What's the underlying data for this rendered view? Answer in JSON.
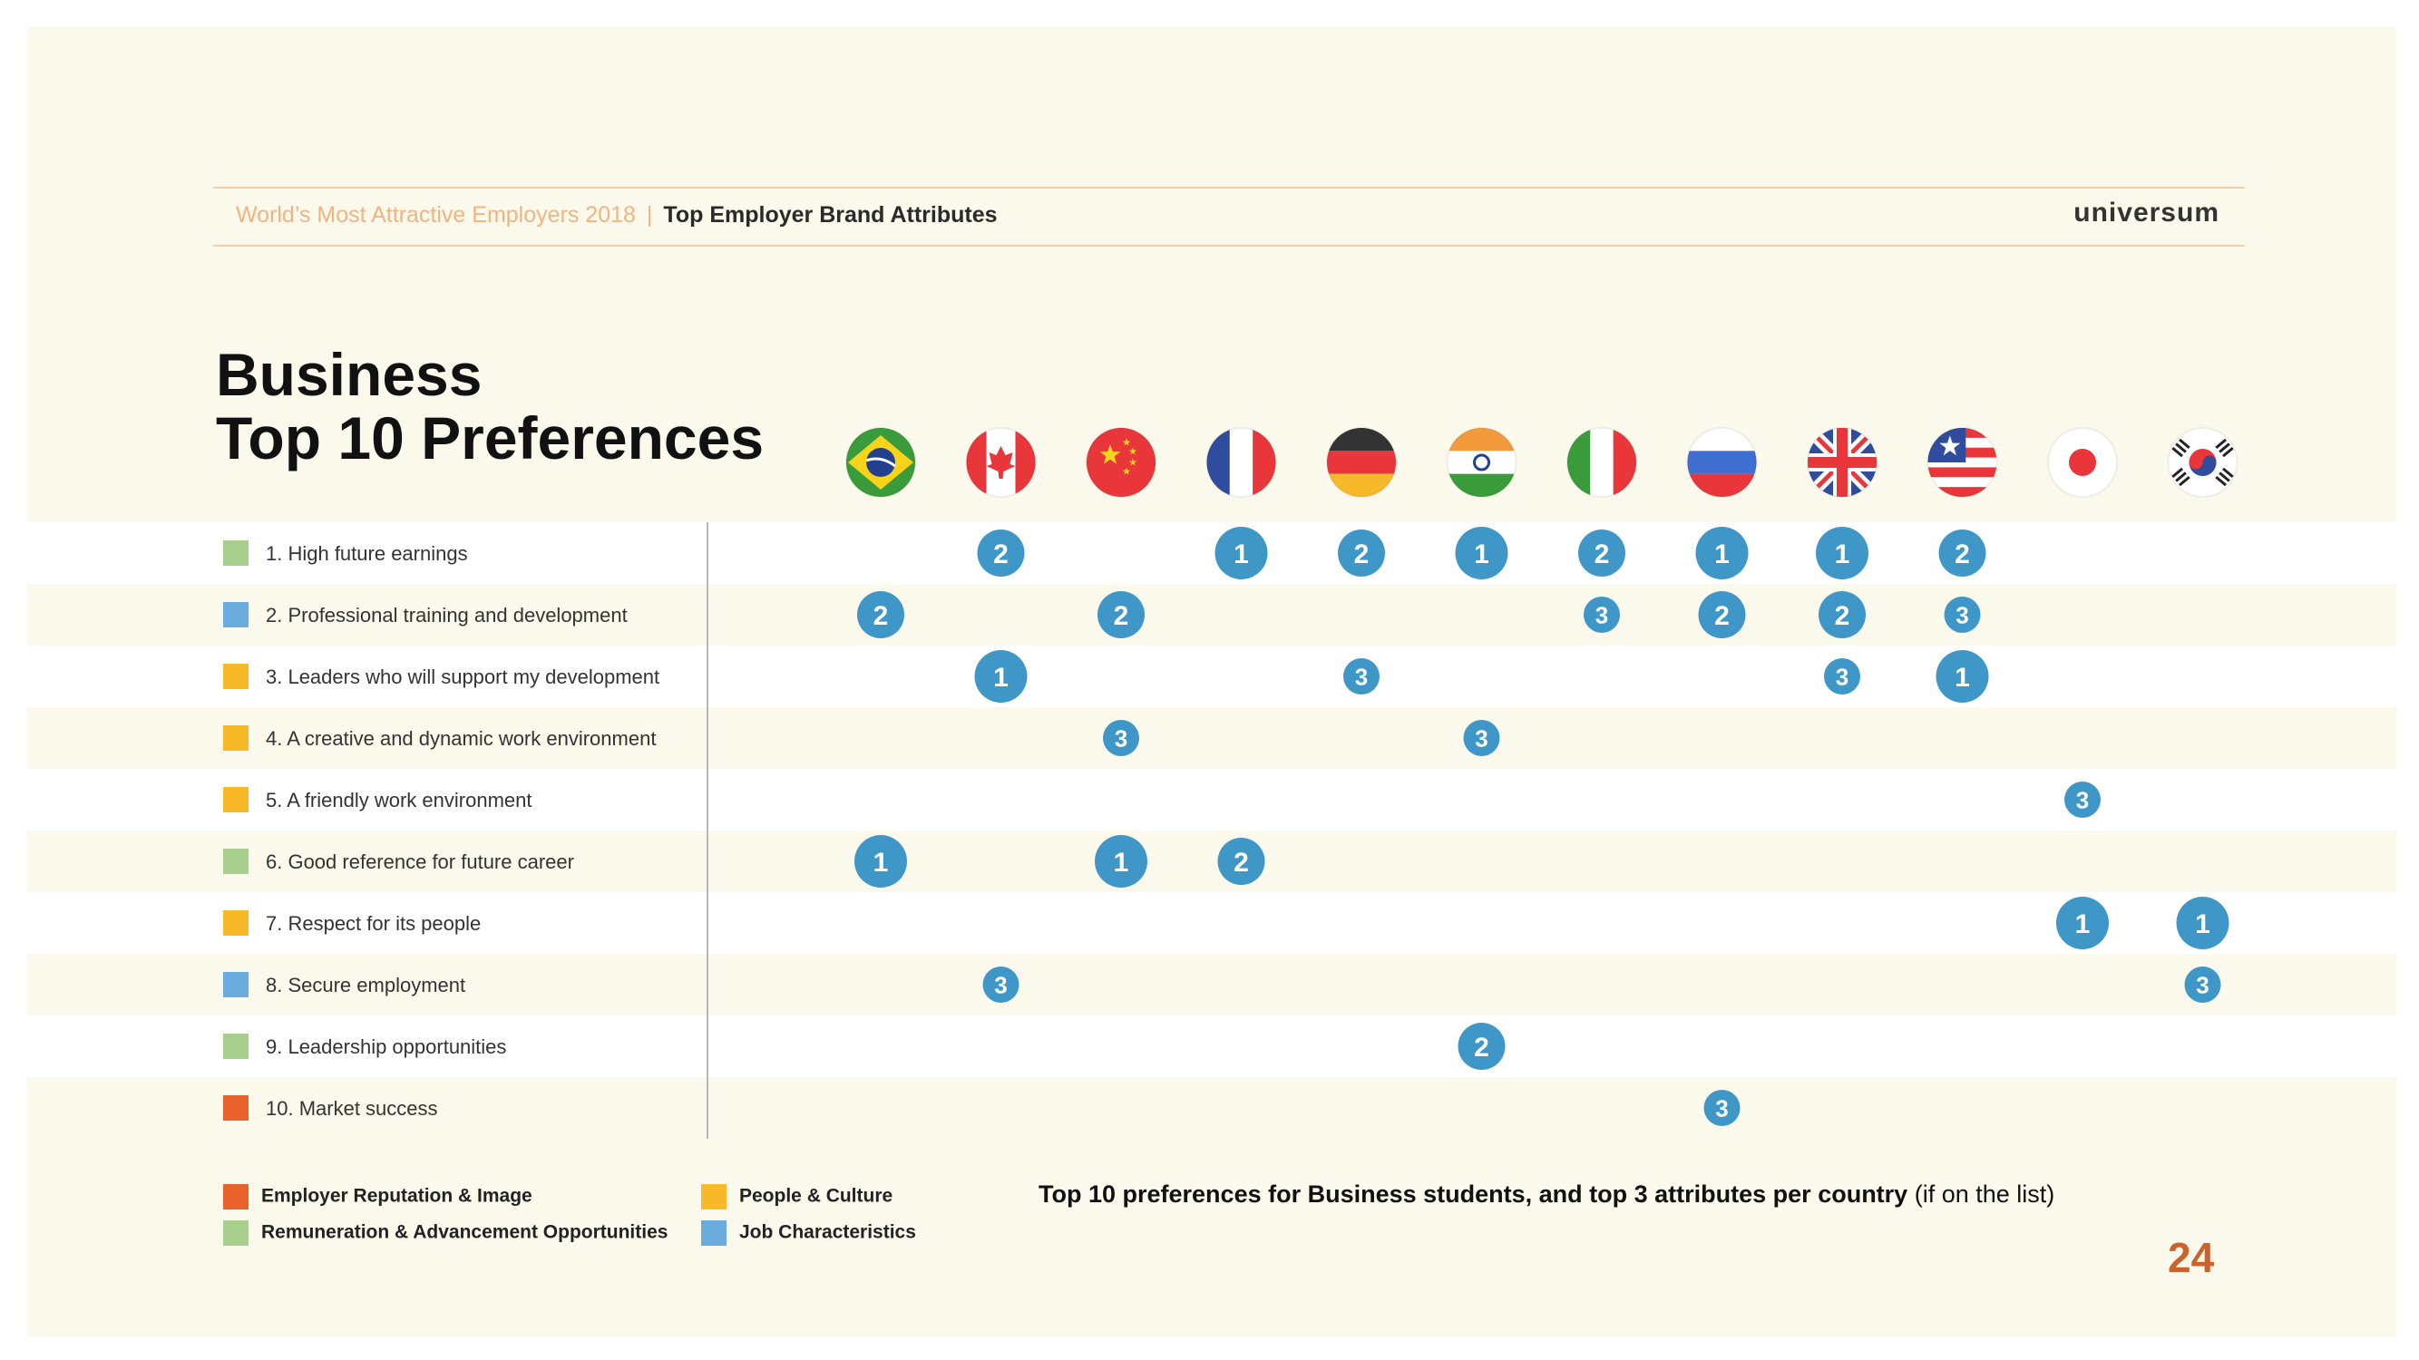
{
  "header": {
    "series": "World’s Most Attractive Employers 2018",
    "separator": "|",
    "topic": "Top Employer Brand Attributes",
    "brand": "universum"
  },
  "title": {
    "line1": "Business",
    "line2": "Top 10 Preferences"
  },
  "colors": {
    "background": "#fbf9ec",
    "band": "#ffffff",
    "badge": "#3f97c8",
    "employer_reputation": "#e8622c",
    "remuneration": "#a9cf8f",
    "people_culture": "#f7b928",
    "job_characteristics": "#6aacde",
    "page_number": "#c9622c"
  },
  "legend": [
    {
      "label": "Employer Reputation & Image",
      "color": "#e8622c"
    },
    {
      "label": "People & Culture",
      "color": "#f7b928"
    },
    {
      "label": "Remuneration & Advancement Opportunities",
      "color": "#a9cf8f"
    },
    {
      "label": "Job Characteristics",
      "color": "#6aacde"
    }
  ],
  "caption": {
    "main": "Top 10 preferences for Business students, and top 3 attributes per country",
    "note": " (if on the list)"
  },
  "page_number": "24",
  "chart_data": {
    "type": "table",
    "columns": [
      "brazil-flag",
      "canada-flag",
      "china-flag",
      "france-flag",
      "germany-flag",
      "india-flag",
      "italy-flag",
      "russia-flag",
      "uk-flag",
      "usa-flag",
      "japan-flag",
      "south-korea-flag"
    ],
    "rows": [
      {
        "label": "1. High future earnings",
        "category_color": "#a9cf8f",
        "ranks": [
          null,
          2,
          null,
          1,
          2,
          1,
          2,
          1,
          1,
          2,
          null,
          null
        ]
      },
      {
        "label": "2. Professional training and development",
        "category_color": "#6aacde",
        "ranks": [
          2,
          null,
          2,
          null,
          null,
          null,
          3,
          2,
          2,
          3,
          null,
          null
        ]
      },
      {
        "label": "3. Leaders who will support my development",
        "category_color": "#f7b928",
        "ranks": [
          null,
          1,
          null,
          null,
          3,
          null,
          null,
          null,
          3,
          1,
          null,
          null
        ]
      },
      {
        "label": "4. A creative and dynamic work environment",
        "category_color": "#f7b928",
        "ranks": [
          null,
          null,
          3,
          null,
          null,
          3,
          null,
          null,
          null,
          null,
          null,
          null
        ]
      },
      {
        "label": "5. A friendly work environment",
        "category_color": "#f7b928",
        "ranks": [
          null,
          null,
          null,
          null,
          null,
          null,
          null,
          null,
          null,
          null,
          3,
          null
        ]
      },
      {
        "label": "6. Good reference for future career",
        "category_color": "#a9cf8f",
        "ranks": [
          1,
          null,
          1,
          2,
          null,
          null,
          null,
          null,
          null,
          null,
          null,
          null
        ]
      },
      {
        "label": "7. Respect for its people",
        "category_color": "#f7b928",
        "ranks": [
          null,
          null,
          null,
          null,
          null,
          null,
          null,
          null,
          null,
          null,
          1,
          1
        ]
      },
      {
        "label": "8. Secure employment",
        "category_color": "#6aacde",
        "ranks": [
          null,
          3,
          null,
          null,
          null,
          null,
          null,
          null,
          null,
          null,
          null,
          3
        ]
      },
      {
        "label": "9. Leadership opportunities",
        "category_color": "#a9cf8f",
        "ranks": [
          null,
          null,
          null,
          null,
          null,
          2,
          null,
          null,
          null,
          null,
          null,
          null
        ]
      },
      {
        "label": "10. Market success",
        "category_color": "#e8622c",
        "ranks": [
          null,
          null,
          null,
          null,
          null,
          null,
          null,
          3,
          null,
          null,
          null,
          null
        ]
      }
    ]
  }
}
